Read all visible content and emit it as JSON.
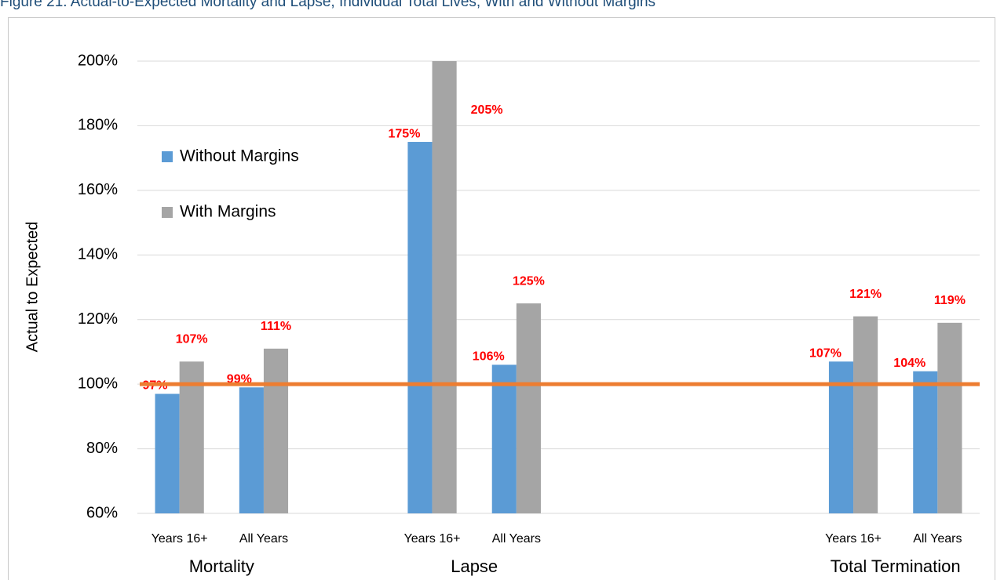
{
  "chart_data": {
    "type": "bar",
    "title": "Figure 21. Actual-to-Expected Mortality and Lapse, Individual Total Lives, With and Without Margins",
    "y_label": "Actual to Expected",
    "categories": [
      "Years 16+",
      "All Years",
      null,
      "Years 16+",
      "All Years",
      null,
      null,
      null,
      "Years 16+",
      "All Years"
    ],
    "groups": [
      {
        "name": "Mortality",
        "from": 0,
        "to": 1
      },
      {
        "name": "Lapse",
        "from": 3,
        "to": 4
      },
      {
        "name": "Total Termination",
        "from": 8,
        "to": 9
      }
    ],
    "series": [
      {
        "name": "Without Margins",
        "color": "#5b9bd5",
        "values": [
          97,
          99,
          null,
          175,
          106,
          null,
          null,
          null,
          107,
          104
        ],
        "value_labels": [
          "97%",
          "99%",
          null,
          "175%",
          "106%",
          null,
          null,
          null,
          "107%",
          "104%"
        ]
      },
      {
        "name": "With Margins",
        "color": "#a5a5a5",
        "values": [
          107,
          111,
          null,
          205,
          125,
          null,
          null,
          null,
          121,
          119
        ],
        "value_labels": [
          "107%",
          "111%",
          null,
          "205%",
          "125%",
          null,
          null,
          null,
          "121%",
          "119%"
        ]
      }
    ],
    "reference_line": {
      "value": 100,
      "color": "#ed7d31"
    },
    "ylim": [
      60,
      200
    ],
    "yticks": [
      {
        "value": 60,
        "label": "60%"
      },
      {
        "value": 80,
        "label": "80%"
      },
      {
        "value": 100,
        "label": "100%"
      },
      {
        "value": 120,
        "label": "120%"
      },
      {
        "value": 140,
        "label": "140%"
      },
      {
        "value": 160,
        "label": "160%"
      },
      {
        "value": 180,
        "label": "180%"
      },
      {
        "value": 200,
        "label": "200%"
      }
    ],
    "grid": true,
    "legend": "upper left",
    "label_color": "#ff0000"
  }
}
